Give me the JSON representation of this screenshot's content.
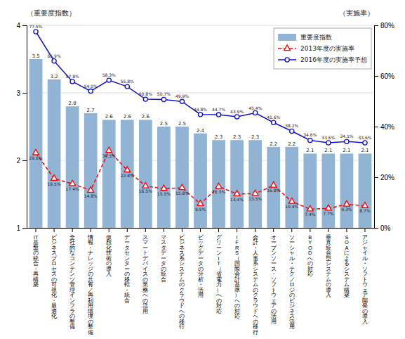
{
  "chart_data": {
    "type": "bar",
    "categories": [
      "IT\n基\n盤\nの\n統\n合\n・\n再\n構\n築",
      "ビ\nジ\nネ\nス\nプ\nロ\nセ\nス\nの\n可\n視\n化\n・\n最\n適\n化",
      "全\n社\n的\nな\nコ\nン\nテ\nン\nツ\n管\n理\nイ\nン\nフ\nラ\nの\n整\n備",
      "情\n報\n・\nナ\nレ\nッ\nジ\nの\n共\n有\n／\n再\n利\n用\n環\n境\nの\n整\n備",
      "仮\n想\n化\n技\n術\nの\n導\n入",
      "デ\nー\nタ\nセ\nン\nタ\nー\nの\n移\n転\n・\n統\n合",
      "ス\nマ\nー\nト\nデ\nバ\nイ\nス\nの\n業\n務\nへ\nの\n活\n用",
      "マ\nス\nタ\nデ\nー\nタ\nの\n統\n合",
      "ビ\nジ\nネ\nス\n系\nシ\nス\nテ\nム\nの\nク\nラ\nウ\nド\nへ\nの\n移\n行",
      "ビ\nッ\nグ\nデ\nー\nタ\nの\n分\n析\n・\n活\n用",
      "グ\nリ\nー\nン\nI\nT\n（\n省\n電\n力\n）\nへ\nの\n対\n応",
      "I\nF\nR\nS\n（\n国\n際\n会\n計\n基\n準\n）\nへ\nの\n対\n応",
      "会\n計\n・\n人\n事\n系\nシ\nス\nテ\nム\nの\nク\nラ\nウ\nド\nへ\nの\n移\n行",
      "オ\nー\nプ\nン\nソ\nー\nス\n・\nソ\nフ\nト\nウ\nェ\nア\nの\n活\n用",
      "ソ\nー\nシ\nャ\nル\n・\nテ\nク\nノ\nロ\nジ\nの\nビ\nジ\nネ\nス\n活\n用",
      "B\nY\nO\nD\nへ\nの\n対\n応",
      "垂\n直\n統\n合\n型\nシ\nス\nテ\nム\nの\n導\n入",
      "S\nO\nA\nに\nよ\nる\nシ\nス\nテ\nム\n構\n築",
      "ア\nジ\nャ\nイ\nル\n・\nソ\nフ\nト\nウ\nェ\nア\n開\n発\nの\n導\n入"
    ],
    "series": [
      {
        "name": "重要度指数",
        "type": "bar",
        "color": "#92B4D4",
        "values": [
          3.5,
          3.2,
          2.8,
          2.7,
          2.6,
          2.6,
          2.6,
          2.5,
          2.5,
          2.4,
          2.3,
          2.3,
          2.3,
          2.2,
          2.2,
          2.1,
          2.1,
          2.1,
          2.1
        ]
      },
      {
        "name": "2013年度の実施率",
        "type": "line",
        "axis": "y2",
        "color": "#FF0000",
        "marker": "triangle",
        "line_style": "dashed",
        "values": [
          29.6,
          19.5,
          17.4,
          14.8,
          30.5,
          22.8,
          16.5,
          15.5,
          15.8,
          9.5,
          16.3,
          13.4,
          13.5,
          16.8,
          10.4,
          7.4,
          7.7,
          9.3,
          8.7
        ],
        "value_labels": [
          "29.6%",
          "19.5%",
          "17.4%",
          "14.8%",
          "30.5%",
          "22.8%",
          "16.5%",
          "15.5%",
          "15.8%",
          "9.5%",
          "16.3%",
          "13.4%",
          "13.5%",
          "16.8%",
          "10.4%",
          "7.4%",
          "7.7%",
          "9.3%",
          "8.7%"
        ]
      },
      {
        "name": "2016年度の実施率予想",
        "type": "line",
        "axis": "y2",
        "color": "#1111CC",
        "marker": "circle",
        "line_style": "solid",
        "values": [
          77.5,
          65.9,
          57.8,
          54.0,
          58.3,
          55.8,
          50.8,
          50.7,
          49.9,
          44.8,
          44.7,
          43.9,
          45.4,
          41.6,
          38.2,
          34.6,
          33.6,
          34.1,
          33.6
        ],
        "value_labels": [
          "77.5%",
          "65.9%",
          "57.8%",
          "54.0%",
          "58.3%",
          "55.8%",
          "50.8%",
          "50.7%",
          "49.9%",
          "44.8%",
          "44.7%",
          "43.9%",
          "45.4%",
          "41.6%",
          "38.2%",
          "34.6%",
          "33.6%",
          "34.1%",
          "33.6%"
        ]
      }
    ],
    "ylabel": "（重要度指数）",
    "y2label": "（実施率）",
    "ylim": [
      1.0,
      4.0
    ],
    "yticks": [
      1,
      2,
      3,
      4
    ],
    "y2lim": [
      0,
      80
    ],
    "y2ticks": [
      {
        "value": 0,
        "label": "0%"
      },
      {
        "value": 20,
        "label": "20%"
      },
      {
        "value": 40,
        "label": "40%"
      },
      {
        "value": 60,
        "label": "60%"
      },
      {
        "value": 80,
        "label": "80%"
      }
    ],
    "grid": true,
    "legend": "upper right",
    "data_labels": true
  }
}
